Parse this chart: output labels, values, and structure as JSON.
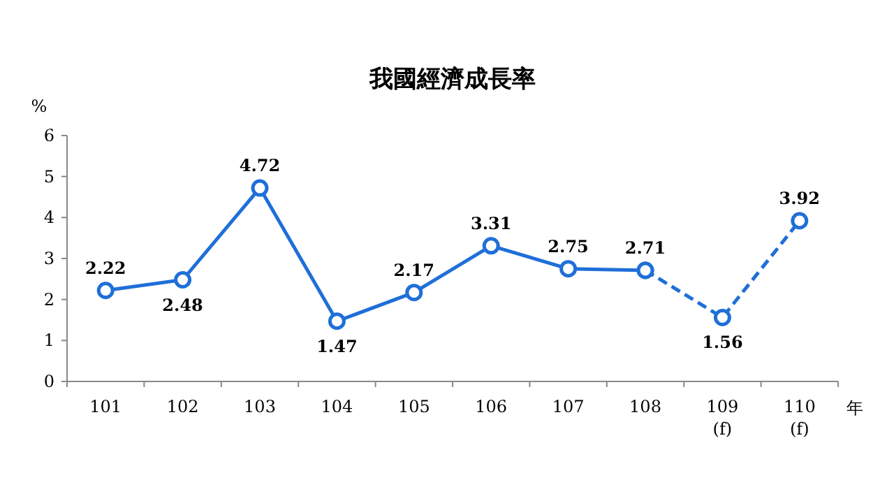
{
  "chart_data": {
    "type": "line",
    "title": "我國經濟成長率",
    "ylabel": "%",
    "xlabel": "年",
    "categories": [
      "101",
      "102",
      "103",
      "104",
      "105",
      "106",
      "107",
      "108",
      "109\n(f)",
      "110\n(f)"
    ],
    "ylim": [
      0,
      6
    ],
    "yticks": [
      0,
      1,
      2,
      3,
      4,
      5,
      6
    ],
    "grid": false,
    "marker": "circle",
    "series": [
      {
        "color": "#1f6fd8",
        "line_style": "solid",
        "values": [
          2.22,
          2.48,
          4.72,
          1.47,
          2.17,
          3.31,
          2.75,
          2.71,
          null,
          null
        ],
        "value_labels": [
          "2.22",
          "2.48",
          "4.72",
          "1.47",
          "2.17",
          "3.31",
          "2.75",
          "2.71",
          null,
          null
        ]
      },
      {
        "color": "#1f6fd8",
        "line_style": "dashed",
        "values": [
          null,
          null,
          null,
          null,
          null,
          null,
          null,
          2.71,
          1.56,
          3.92
        ],
        "value_labels": [
          null,
          null,
          null,
          null,
          null,
          null,
          null,
          null,
          "1.56",
          "3.92"
        ]
      }
    ]
  }
}
